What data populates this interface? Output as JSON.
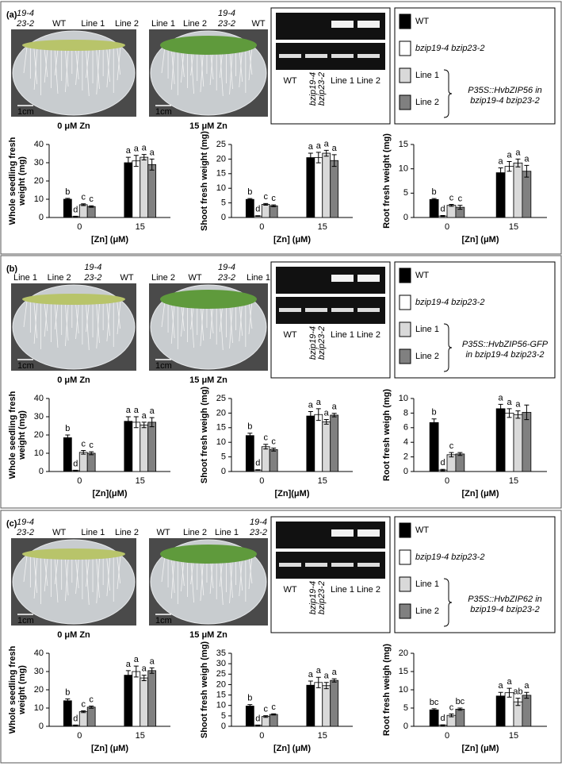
{
  "panels": [
    {
      "label": "(a)",
      "plates": [
        {
          "labels": [
            [
              "19-4",
              "23-2"
            ],
            [
              "WT"
            ],
            [
              "Line 1"
            ],
            [
              "Line 2"
            ]
          ],
          "caption": "0 μM Zn"
        },
        {
          "labels": [
            [
              "Line 1"
            ],
            [
              "Line 2"
            ],
            [
              "19-4",
              "23-2"
            ],
            [
              "WT"
            ]
          ],
          "caption": "15 μM Zn"
        }
      ],
      "scale_bar": "1cm",
      "gel_labels": [
        [
          "WT"
        ],
        [
          "bzip19-4",
          "bzip23-2"
        ],
        [
          "Line 1"
        ],
        [
          "Line 2"
        ]
      ],
      "construct": [
        "P35S::HvbZIP56 in",
        "bzip19-4 bzip23-2"
      ]
    },
    {
      "label": "(b)",
      "plates": [
        {
          "labels": [
            [
              "Line 1"
            ],
            [
              "Line 2"
            ],
            [
              "19-4",
              "23-2"
            ],
            [
              "WT"
            ]
          ],
          "caption": "0 μM Zn"
        },
        {
          "labels": [
            [
              "Line 2"
            ],
            [
              "WT"
            ],
            [
              "19-4",
              "23-2"
            ],
            [
              "Line 1"
            ]
          ],
          "caption": "15 μM Zn"
        }
      ],
      "scale_bar": "1cm",
      "gel_labels": [
        [
          "WT"
        ],
        [
          "bzip19-4",
          "bzip23-2"
        ],
        [
          "Line 1"
        ],
        [
          "Line 2"
        ]
      ],
      "construct": [
        "P35S::HvbZIP56-GFP",
        "in bzip19-4 bzip23-2"
      ]
    },
    {
      "label": "(c)",
      "plates": [
        {
          "labels": [
            [
              "19-4",
              "23-2"
            ],
            [
              "WT"
            ],
            [
              "Line 1"
            ],
            [
              "Line 2"
            ]
          ],
          "caption": "0 μM Zn"
        },
        {
          "labels": [
            [
              "WT"
            ],
            [
              "Line 2"
            ],
            [
              "Line 1"
            ],
            [
              "19-4",
              "23-2"
            ]
          ],
          "caption": "15 μM Zn"
        }
      ],
      "scale_bar": "1cm",
      "gel_labels": [
        [
          "WT"
        ],
        [
          "bzip19-4",
          "bzip23-2"
        ],
        [
          "Line 1"
        ],
        [
          "Line 2"
        ]
      ],
      "construct": [
        "P35S::HvbZIP62 in",
        "bzip19-4 bzip23-2"
      ]
    }
  ],
  "chart_data": [
    {
      "type": "bar",
      "ylabel": [
        "Whole seedling fresh",
        "weight (mg)"
      ],
      "xlabel": "[Zn] (μM)",
      "categories": [
        "0",
        "15"
      ],
      "ylim": [
        0,
        40
      ],
      "yticks": [
        0,
        10,
        20,
        30,
        40
      ],
      "series": [
        {
          "name": "WT",
          "color": "#000000",
          "values": [
            10,
            30
          ],
          "errors": [
            0.5,
            3
          ],
          "letters": [
            "b",
            "a"
          ]
        },
        {
          "name": "bzip19-4 bzip23-2",
          "color": "#ffffff",
          "values": [
            0.5,
            31
          ],
          "errors": [
            0.2,
            3
          ],
          "letters": [
            "d",
            "a"
          ]
        },
        {
          "name": "Line 1",
          "color": "#d9d9d9",
          "values": [
            7,
            33
          ],
          "errors": [
            0.5,
            1.5
          ],
          "letters": [
            "c",
            "a"
          ]
        },
        {
          "name": "Line 2",
          "color": "#808080",
          "values": [
            6,
            29
          ],
          "errors": [
            0.4,
            3
          ],
          "letters": [
            "c",
            "a"
          ]
        }
      ]
    },
    {
      "type": "bar",
      "ylabel": [
        "Shoot fresh weight (mg)"
      ],
      "xlabel": "[Zn] (μM)",
      "categories": [
        "0",
        "15"
      ],
      "ylim": [
        0,
        25
      ],
      "yticks": [
        0,
        5,
        10,
        15,
        20,
        25
      ],
      "series": [
        {
          "name": "WT",
          "color": "#000000",
          "values": [
            6.2,
            20.5
          ],
          "errors": [
            0.3,
            1.5
          ],
          "letters": [
            "b",
            "a"
          ]
        },
        {
          "name": "bzip19-4 bzip23-2",
          "color": "#ffffff",
          "values": [
            0.5,
            20.5
          ],
          "errors": [
            0.1,
            1.8
          ],
          "letters": [
            "d",
            "a"
          ]
        },
        {
          "name": "Line 1",
          "color": "#d9d9d9",
          "values": [
            4.5,
            22
          ],
          "errors": [
            0.3,
            1
          ],
          "letters": [
            "c",
            "a"
          ]
        },
        {
          "name": "Line 2",
          "color": "#808080",
          "values": [
            4,
            19.5
          ],
          "errors": [
            0.3,
            2
          ],
          "letters": [
            "c",
            "a"
          ]
        }
      ]
    },
    {
      "type": "bar",
      "ylabel": [
        "Root fresh weight (mg)"
      ],
      "xlabel": "[Zn] (μM)",
      "categories": [
        "0",
        "15"
      ],
      "ylim": [
        0,
        15
      ],
      "yticks": [
        0,
        5,
        10,
        15
      ],
      "series": [
        {
          "name": "WT",
          "color": "#000000",
          "values": [
            3.7,
            9.2
          ],
          "errors": [
            0.2,
            1
          ],
          "letters": [
            "b",
            "a"
          ]
        },
        {
          "name": "bzip19-4 bzip23-2",
          "color": "#ffffff",
          "values": [
            0.3,
            10.5
          ],
          "errors": [
            0.1,
            1
          ],
          "letters": [
            "d",
            "a"
          ]
        },
        {
          "name": "Line 1",
          "color": "#d9d9d9",
          "values": [
            2.5,
            11.2
          ],
          "errors": [
            0.2,
            0.8
          ],
          "letters": [
            "c",
            "a"
          ]
        },
        {
          "name": "Line 2",
          "color": "#808080",
          "values": [
            2.1,
            9.5
          ],
          "errors": [
            0.4,
            1.2
          ],
          "letters": [
            "c",
            "a"
          ]
        }
      ]
    },
    {
      "type": "bar",
      "ylabel": [
        "Whole seedling  fresh",
        "weight (mg)"
      ],
      "xlabel": "[Zn](μM)",
      "categories": [
        "0",
        "15"
      ],
      "ylim": [
        0,
        40
      ],
      "yticks": [
        0,
        10,
        20,
        30,
        40
      ],
      "series": [
        {
          "name": "WT",
          "color": "#000000",
          "values": [
            18.5,
            27.5
          ],
          "errors": [
            1.5,
            2.5
          ],
          "letters": [
            "b",
            "a"
          ]
        },
        {
          "name": "bzip19-4 bzip23-2",
          "color": "#ffffff",
          "values": [
            0.5,
            27
          ],
          "errors": [
            0.2,
            3
          ],
          "letters": [
            "d",
            "a"
          ]
        },
        {
          "name": "Line 1",
          "color": "#d9d9d9",
          "values": [
            10.5,
            25.5
          ],
          "errors": [
            1,
            1.5
          ],
          "letters": [
            "c",
            "a"
          ]
        },
        {
          "name": "Line 2",
          "color": "#808080",
          "values": [
            10,
            27
          ],
          "errors": [
            0.8,
            2.5
          ],
          "letters": [
            "c",
            "a"
          ]
        }
      ]
    },
    {
      "type": "bar",
      "ylabel": [
        "Shoot fresh weigh (mg)"
      ],
      "xlabel": "[Zn](μM)",
      "categories": [
        "0",
        "15"
      ],
      "ylim": [
        0,
        25
      ],
      "yticks": [
        0,
        5,
        10,
        15,
        20,
        25
      ],
      "series": [
        {
          "name": "WT",
          "color": "#000000",
          "values": [
            12.3,
            19
          ],
          "errors": [
            0.8,
            1.5
          ],
          "letters": [
            "b",
            "a"
          ]
        },
        {
          "name": "bzip19-4 bzip23-2",
          "color": "#ffffff",
          "values": [
            0.5,
            19.5
          ],
          "errors": [
            0.1,
            2
          ],
          "letters": [
            "d",
            "a"
          ]
        },
        {
          "name": "Line 1",
          "color": "#d9d9d9",
          "values": [
            8.5,
            17
          ],
          "errors": [
            0.8,
            0.8
          ],
          "letters": [
            "c",
            "a"
          ]
        },
        {
          "name": "Line 2",
          "color": "#808080",
          "values": [
            7.5,
            19.3
          ],
          "errors": [
            0.5,
            0.6
          ],
          "letters": [
            "c",
            "a"
          ]
        }
      ]
    },
    {
      "type": "bar",
      "ylabel": [
        "Root fresh weigh (mg)"
      ],
      "xlabel": "[Zn]  (μM)",
      "categories": [
        "0",
        "15"
      ],
      "ylim": [
        0,
        10
      ],
      "yticks": [
        0,
        2,
        4,
        6,
        8,
        10
      ],
      "series": [
        {
          "name": "WT",
          "color": "#000000",
          "values": [
            6.7,
            8.6
          ],
          "errors": [
            0.5,
            0.6
          ],
          "letters": [
            "b",
            "a"
          ]
        },
        {
          "name": "bzip19-4 bzip23-2",
          "color": "#ffffff",
          "values": [
            0.2,
            8
          ],
          "errors": [
            0.1,
            0.6
          ],
          "letters": [
            "d",
            "a"
          ]
        },
        {
          "name": "Line 1",
          "color": "#d9d9d9",
          "values": [
            2.3,
            7.8
          ],
          "errors": [
            0.3,
            0.5
          ],
          "letters": [
            "c",
            "a"
          ]
        },
        {
          "name": "Line 2",
          "color": "#808080",
          "values": [
            2.4,
            8.1
          ],
          "errors": [
            0.2,
            1
          ]
        }
      ]
    },
    {
      "type": "bar",
      "ylabel": [
        "Whole seedling fresh",
        "weight (mg)"
      ],
      "xlabel": "[Zn] (μM)",
      "categories": [
        "0",
        "15"
      ],
      "ylim": [
        0,
        40
      ],
      "yticks": [
        0,
        10,
        20,
        30,
        40
      ],
      "series": [
        {
          "name": "WT",
          "color": "#000000",
          "values": [
            14,
            28
          ],
          "errors": [
            1,
            2.5
          ],
          "letters": [
            "b",
            "a"
          ]
        },
        {
          "name": "bzip19-4 bzip23-2",
          "color": "#ffffff",
          "values": [
            0.5,
            30
          ],
          "errors": [
            0.2,
            3
          ],
          "letters": [
            "d",
            "a"
          ]
        },
        {
          "name": "Line 1",
          "color": "#d9d9d9",
          "values": [
            8,
            26.5
          ],
          "errors": [
            0.5,
            1.5
          ],
          "letters": [
            "c",
            "a"
          ]
        },
        {
          "name": "Line 2",
          "color": "#808080",
          "values": [
            10.5,
            30.5
          ],
          "errors": [
            0.6,
            1.5
          ],
          "letters": [
            "c",
            "a"
          ]
        }
      ]
    },
    {
      "type": "bar",
      "ylabel": [
        "Shoot fresh weigh (mg)"
      ],
      "xlabel": "[Zn] (μM)",
      "categories": [
        "0",
        "15"
      ],
      "ylim": [
        0,
        35
      ],
      "yticks": [
        0,
        5,
        10,
        15,
        20,
        25,
        30,
        35
      ],
      "series": [
        {
          "name": "WT",
          "color": "#000000",
          "values": [
            9.7,
            19.7
          ],
          "errors": [
            0.7,
            2
          ],
          "letters": [
            "b",
            "a"
          ]
        },
        {
          "name": "bzip19-4 bzip23-2",
          "color": "#ffffff",
          "values": [
            0.5,
            21
          ],
          "errors": [
            0.1,
            2.5
          ],
          "letters": [
            "d",
            "a"
          ]
        },
        {
          "name": "Line 1",
          "color": "#d9d9d9",
          "values": [
            4.7,
            19.5
          ],
          "errors": [
            0.4,
            1.5
          ],
          "letters": [
            "c",
            "a"
          ]
        },
        {
          "name": "Line 2",
          "color": "#808080",
          "values": [
            5.7,
            22
          ],
          "errors": [
            0.3,
            0.8
          ],
          "letters": [
            "c",
            "a"
          ]
        }
      ]
    },
    {
      "type": "bar",
      "ylabel": [
        "Root fresh weigh (mg)"
      ],
      "xlabel": "[Zn] (μM)",
      "categories": [
        "0",
        "15"
      ],
      "ylim": [
        0,
        20
      ],
      "yticks": [
        0,
        5,
        10,
        15,
        20
      ],
      "series": [
        {
          "name": "WT",
          "color": "#000000",
          "values": [
            4.5,
            8.3
          ],
          "errors": [
            0.3,
            1
          ],
          "letters": [
            "bc",
            "a"
          ]
        },
        {
          "name": "bzip19-4 bzip23-2",
          "color": "#ffffff",
          "values": [
            0.3,
            9.2
          ],
          "errors": [
            0.1,
            1.2
          ],
          "letters": [
            "d",
            "a"
          ]
        },
        {
          "name": "Line 1",
          "color": "#d9d9d9",
          "values": [
            3,
            6.7
          ],
          "errors": [
            0.4,
            1
          ],
          "letters": [
            "c",
            "ab"
          ]
        },
        {
          "name": "Line 2",
          "color": "#808080",
          "values": [
            4.7,
            8.5
          ],
          "errors": [
            0.3,
            0.8
          ],
          "letters": [
            "bc",
            "a"
          ]
        }
      ]
    }
  ]
}
